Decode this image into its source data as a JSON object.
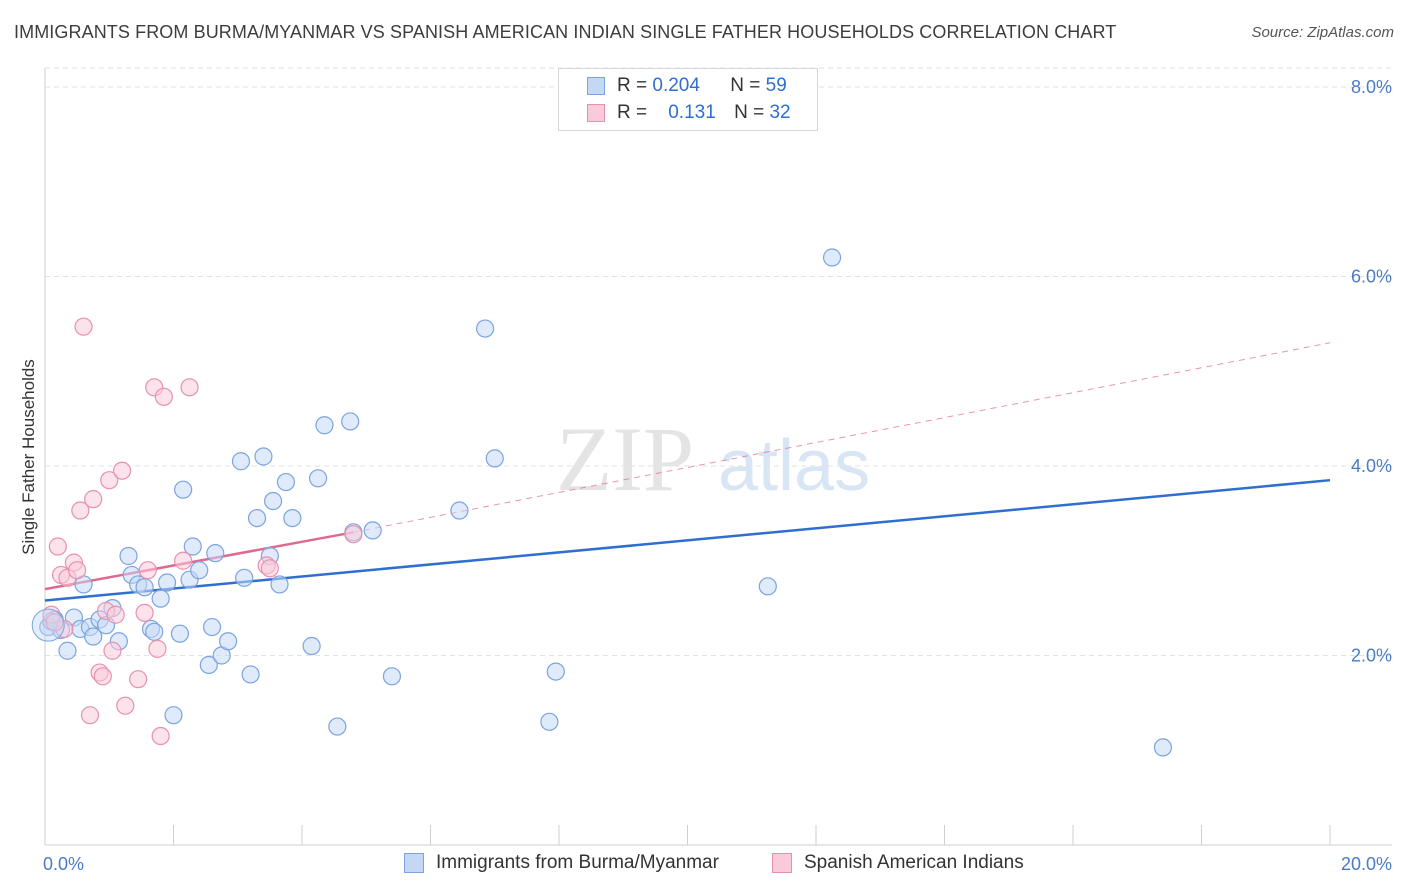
{
  "title": "IMMIGRANTS FROM BURMA/MYANMAR VS SPANISH AMERICAN INDIAN SINGLE FATHER HOUSEHOLDS CORRELATION CHART",
  "source": "Source: ZipAtlas.com",
  "watermark": {
    "zip": "ZIP",
    "atlas": "atlas"
  },
  "legend": {
    "r_label": "R =",
    "n_label": "N =",
    "rows": [
      {
        "r": "0.204",
        "n": "59",
        "fill": "#c4d8f5",
        "stroke": "#7ba4e0"
      },
      {
        "r": "0.131",
        "n": "32",
        "fill": "#f9cada",
        "stroke": "#e891ad"
      }
    ]
  },
  "chart_data": {
    "type": "scatter",
    "title": "IMMIGRANTS FROM BURMA/MYANMAR VS SPANISH AMERICAN INDIAN SINGLE FATHER HOUSEHOLDS CORRELATION CHART",
    "xlabel": "",
    "ylabel": "Single Father Households",
    "xlim": [
      0,
      20
    ],
    "ylim": [
      0,
      8.2
    ],
    "x_tick_labels": [
      "0.0%",
      "20.0%"
    ],
    "y_ticks": [
      2,
      4,
      6,
      8
    ],
    "y_tick_labels": [
      "2.0%",
      "4.0%",
      "6.0%",
      "8.0%"
    ],
    "series": [
      {
        "name": "Immigrants from Burma/Myanmar",
        "color": "#7ba4e0",
        "fill": "#c4d8f5",
        "trend": {
          "x0": 0,
          "y0": 2.58,
          "x1": 20,
          "y1": 3.85,
          "color": "#2e6fcf",
          "style": "solid"
        },
        "points": [
          [
            0.05,
            2.3
          ],
          [
            0.15,
            2.38
          ],
          [
            0.25,
            2.27
          ],
          [
            0.35,
            2.05
          ],
          [
            0.45,
            2.4
          ],
          [
            0.55,
            2.28
          ],
          [
            0.6,
            2.75
          ],
          [
            0.7,
            2.3
          ],
          [
            0.75,
            2.2
          ],
          [
            0.85,
            2.38
          ],
          [
            0.95,
            2.32
          ],
          [
            1.05,
            2.5
          ],
          [
            1.15,
            2.15
          ],
          [
            1.3,
            3.05
          ],
          [
            1.35,
            2.85
          ],
          [
            1.45,
            2.75
          ],
          [
            1.55,
            2.72
          ],
          [
            1.65,
            2.28
          ],
          [
            1.7,
            2.25
          ],
          [
            1.8,
            2.6
          ],
          [
            1.9,
            2.77
          ],
          [
            2.0,
            1.37
          ],
          [
            2.1,
            2.23
          ],
          [
            2.15,
            3.75
          ],
          [
            2.25,
            2.8
          ],
          [
            2.3,
            3.15
          ],
          [
            2.4,
            2.9
          ],
          [
            2.55,
            1.9
          ],
          [
            2.6,
            2.3
          ],
          [
            2.65,
            3.08
          ],
          [
            2.75,
            2.0
          ],
          [
            2.85,
            2.15
          ],
          [
            3.05,
            4.05
          ],
          [
            3.1,
            2.82
          ],
          [
            3.2,
            1.8
          ],
          [
            3.3,
            3.45
          ],
          [
            3.4,
            4.1
          ],
          [
            3.5,
            3.05
          ],
          [
            3.55,
            3.63
          ],
          [
            3.65,
            2.75
          ],
          [
            3.75,
            3.83
          ],
          [
            3.85,
            3.45
          ],
          [
            4.15,
            2.1
          ],
          [
            4.25,
            3.87
          ],
          [
            4.35,
            4.43
          ],
          [
            4.55,
            1.25
          ],
          [
            4.75,
            4.47
          ],
          [
            4.8,
            3.3
          ],
          [
            5.1,
            3.32
          ],
          [
            5.4,
            1.78
          ],
          [
            7.0,
            4.08
          ],
          [
            6.45,
            3.53
          ],
          [
            6.85,
            5.45
          ],
          [
            7.85,
            1.3
          ],
          [
            7.95,
            1.83
          ],
          [
            11.25,
            2.73
          ],
          [
            12.25,
            6.2
          ],
          [
            17.4,
            1.03
          ],
          [
            0.1,
            2.36
          ]
        ]
      },
      {
        "name": "Spanish American Indians",
        "color": "#e891ad",
        "fill": "#f9cada",
        "trend": {
          "x0": 0,
          "y0": 2.7,
          "x1": 4.8,
          "y1": 3.3,
          "color": "#e0698f",
          "style": "solid",
          "ext_x1": 20,
          "ext_y1": 5.3,
          "ext_style": "dashed"
        },
        "points": [
          [
            0.1,
            2.43
          ],
          [
            0.2,
            3.15
          ],
          [
            0.25,
            2.85
          ],
          [
            0.3,
            2.28
          ],
          [
            0.35,
            2.82
          ],
          [
            0.45,
            2.98
          ],
          [
            0.5,
            2.9
          ],
          [
            0.55,
            3.53
          ],
          [
            0.6,
            5.47
          ],
          [
            0.7,
            1.37
          ],
          [
            0.75,
            3.65
          ],
          [
            0.85,
            1.82
          ],
          [
            0.9,
            1.78
          ],
          [
            0.95,
            2.47
          ],
          [
            1.0,
            3.85
          ],
          [
            1.05,
            2.05
          ],
          [
            1.1,
            2.43
          ],
          [
            1.2,
            3.95
          ],
          [
            1.25,
            1.47
          ],
          [
            1.45,
            1.75
          ],
          [
            1.55,
            2.45
          ],
          [
            1.6,
            2.9
          ],
          [
            1.7,
            4.83
          ],
          [
            1.75,
            2.07
          ],
          [
            1.8,
            1.15
          ],
          [
            1.85,
            4.73
          ],
          [
            2.15,
            3.0
          ],
          [
            2.25,
            4.83
          ],
          [
            3.45,
            2.95
          ],
          [
            3.5,
            2.92
          ],
          [
            4.8,
            3.28
          ],
          [
            0.15,
            2.35
          ]
        ]
      }
    ]
  },
  "bottom_legend": [
    "Immigrants from Burma/Myanmar",
    "Spanish American Indians"
  ]
}
